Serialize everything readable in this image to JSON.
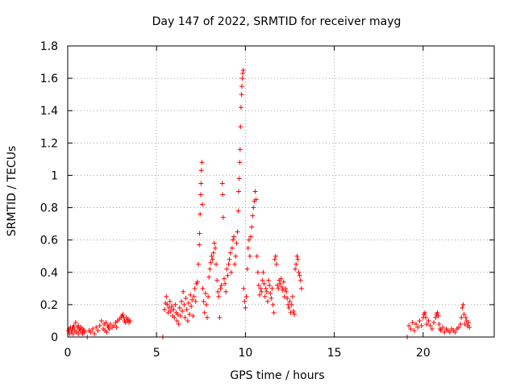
{
  "chart_data": {
    "type": "scatter",
    "title": "Day 147 of 2022, SRMTID for receiver mayg",
    "xlabel": "GPS time / hours",
    "ylabel": "SRMTID / TECUs",
    "xlim": [
      0,
      24
    ],
    "ylim": [
      0,
      1.8
    ],
    "xticks": [
      0,
      5,
      10,
      15,
      20
    ],
    "xtick_labels": [
      "0",
      "5",
      "10",
      "15",
      "20"
    ],
    "yticks": [
      0,
      0.2,
      0.4,
      0.6,
      0.8,
      1.0,
      1.2,
      1.4,
      1.6,
      1.8
    ],
    "ytick_labels": [
      "0",
      "0.2",
      "0.4",
      "0.6",
      "0.8",
      "1",
      "1.2",
      "1.4",
      "1.6",
      "1.8"
    ],
    "grid": true,
    "marker": "+",
    "color": "#ff0000",
    "series": [
      {
        "name": "SRMTID",
        "points": [
          [
            0.05,
            0.04
          ],
          [
            0.1,
            0.02
          ],
          [
            0.15,
            0.06
          ],
          [
            0.2,
            0.03
          ],
          [
            0.25,
            0.05
          ],
          [
            0.3,
            0.02
          ],
          [
            0.35,
            0.07
          ],
          [
            0.4,
            0.04
          ],
          [
            0.45,
            0.09
          ],
          [
            0.5,
            0.03
          ],
          [
            0.55,
            0.06
          ],
          [
            0.6,
            0.02
          ],
          [
            0.65,
            0.05
          ],
          [
            0.7,
            0.04
          ],
          [
            0.75,
            0.06
          ],
          [
            0.8,
            0.03
          ],
          [
            0.85,
            0.05
          ],
          [
            0.9,
            0.04
          ],
          [
            0.95,
            0.03
          ],
          [
            0.1,
            0.05
          ],
          [
            0.3,
            0.06
          ],
          [
            0.6,
            0.07
          ],
          [
            0.85,
            0.02
          ],
          [
            1.1,
            0.0
          ],
          [
            1.2,
            0.04
          ],
          [
            1.3,
            0.03
          ],
          [
            1.4,
            0.05
          ],
          [
            1.5,
            0.02
          ],
          [
            1.6,
            0.06
          ],
          [
            1.7,
            0.04
          ],
          [
            1.8,
            0.07
          ],
          [
            1.9,
            0.1
          ],
          [
            2.0,
            0.05
          ],
          [
            2.05,
            0.08
          ],
          [
            2.1,
            0.04
          ],
          [
            2.15,
            0.09
          ],
          [
            2.2,
            0.03
          ],
          [
            2.25,
            0.07
          ],
          [
            2.3,
            0.06
          ],
          [
            2.35,
            0.05
          ],
          [
            2.4,
            0.08
          ],
          [
            2.5,
            0.06
          ],
          [
            2.6,
            0.07
          ],
          [
            2.7,
            0.09
          ],
          [
            2.75,
            0.06
          ],
          [
            2.8,
            0.1
          ],
          [
            2.9,
            0.11
          ],
          [
            3.0,
            0.12
          ],
          [
            3.05,
            0.13
          ],
          [
            3.1,
            0.14
          ],
          [
            3.15,
            0.12
          ],
          [
            3.2,
            0.1
          ],
          [
            3.25,
            0.09
          ],
          [
            3.3,
            0.12
          ],
          [
            3.35,
            0.1
          ],
          [
            3.4,
            0.11
          ],
          [
            3.45,
            0.09
          ],
          [
            3.5,
            0.1
          ],
          [
            5.35,
            0.0
          ],
          [
            5.45,
            0.17
          ],
          [
            5.5,
            0.21
          ],
          [
            5.55,
            0.25
          ],
          [
            5.6,
            0.2
          ],
          [
            5.65,
            0.15
          ],
          [
            5.7,
            0.18
          ],
          [
            5.75,
            0.22
          ],
          [
            5.8,
            0.16
          ],
          [
            5.85,
            0.19
          ],
          [
            5.9,
            0.13
          ],
          [
            5.95,
            0.17
          ],
          [
            6.0,
            0.12
          ],
          [
            6.05,
            0.2
          ],
          [
            6.1,
            0.15
          ],
          [
            6.15,
            0.1
          ],
          [
            6.2,
            0.14
          ],
          [
            6.25,
            0.08
          ],
          [
            6.3,
            0.18
          ],
          [
            6.35,
            0.13
          ],
          [
            6.4,
            0.22
          ],
          [
            6.45,
            0.16
          ],
          [
            6.5,
            0.28
          ],
          [
            6.55,
            0.2
          ],
          [
            6.6,
            0.12
          ],
          [
            6.65,
            0.24
          ],
          [
            6.7,
            0.17
          ],
          [
            6.75,
            0.1
          ],
          [
            6.8,
            0.21
          ],
          [
            6.85,
            0.14
          ],
          [
            6.9,
            0.26
          ],
          [
            6.95,
            0.19
          ],
          [
            7.0,
            0.23
          ],
          [
            7.05,
            0.13
          ],
          [
            7.1,
            0.25
          ],
          [
            7.15,
            0.3
          ],
          [
            7.2,
            0.22
          ],
          [
            7.25,
            0.33
          ],
          [
            7.3,
            0.34
          ],
          [
            7.35,
            0.45
          ],
          [
            7.4,
            0.57
          ],
          [
            7.42,
            0.64
          ],
          [
            7.45,
            0.76
          ],
          [
            7.48,
            0.88
          ],
          [
            7.5,
            0.95
          ],
          [
            7.52,
            1.03
          ],
          [
            7.55,
            1.08
          ],
          [
            7.58,
            0.82
          ],
          [
            7.6,
            0.3
          ],
          [
            7.65,
            0.22
          ],
          [
            7.7,
            0.15
          ],
          [
            7.75,
            0.27
          ],
          [
            7.8,
            0.2
          ],
          [
            7.85,
            0.12
          ],
          [
            7.9,
            0.25
          ],
          [
            7.95,
            0.37
          ],
          [
            8.0,
            0.42
          ],
          [
            8.05,
            0.46
          ],
          [
            8.1,
            0.5
          ],
          [
            8.15,
            0.48
          ],
          [
            8.2,
            0.52
          ],
          [
            8.25,
            0.58
          ],
          [
            8.3,
            0.55
          ],
          [
            8.35,
            0.45
          ],
          [
            8.4,
            0.35
          ],
          [
            8.45,
            0.28
          ],
          [
            8.5,
            0.25
          ],
          [
            8.55,
            0.12
          ],
          [
            8.6,
            0.3
          ],
          [
            8.65,
            0.32
          ],
          [
            8.7,
            0.95
          ],
          [
            8.72,
            0.88
          ],
          [
            8.75,
            0.74
          ],
          [
            8.8,
            0.36
          ],
          [
            8.85,
            0.33
          ],
          [
            8.9,
            0.28
          ],
          [
            8.95,
            0.42
          ],
          [
            9.0,
            0.38
          ],
          [
            9.05,
            0.45
          ],
          [
            9.1,
            0.48
          ],
          [
            9.15,
            0.52
          ],
          [
            9.2,
            0.4
          ],
          [
            9.25,
            0.55
          ],
          [
            9.3,
            0.6
          ],
          [
            9.35,
            0.62
          ],
          [
            9.4,
            0.45
          ],
          [
            9.45,
            0.5
          ],
          [
            9.5,
            0.58
          ],
          [
            9.55,
            0.65
          ],
          [
            9.6,
            0.78
          ],
          [
            9.62,
            0.9
          ],
          [
            9.65,
            0.98
          ],
          [
            9.68,
            1.08
          ],
          [
            9.7,
            1.16
          ],
          [
            9.72,
            1.3
          ],
          [
            9.75,
            1.42
          ],
          [
            9.78,
            1.5
          ],
          [
            9.8,
            1.55
          ],
          [
            9.82,
            1.6
          ],
          [
            9.85,
            1.63
          ],
          [
            9.88,
            1.65
          ],
          [
            9.9,
            0.3
          ],
          [
            9.95,
            0.22
          ],
          [
            10.0,
            0.18
          ],
          [
            10.05,
            0.25
          ],
          [
            10.1,
            0.42
          ],
          [
            10.15,
            0.55
          ],
          [
            10.2,
            0.6
          ],
          [
            10.25,
            0.5
          ],
          [
            10.3,
            0.62
          ],
          [
            10.35,
            0.68
          ],
          [
            10.4,
            0.75
          ],
          [
            10.45,
            0.8
          ],
          [
            10.5,
            0.84
          ],
          [
            10.55,
            0.9
          ],
          [
            10.6,
            0.85
          ],
          [
            10.65,
            0.5
          ],
          [
            10.7,
            0.4
          ],
          [
            10.75,
            0.32
          ],
          [
            10.8,
            0.26
          ],
          [
            10.85,
            0.3
          ],
          [
            10.9,
            0.28
          ],
          [
            10.95,
            0.35
          ],
          [
            11.0,
            0.4
          ],
          [
            11.05,
            0.33
          ],
          [
            11.1,
            0.25
          ],
          [
            11.15,
            0.3
          ],
          [
            11.2,
            0.28
          ],
          [
            11.25,
            0.22
          ],
          [
            11.3,
            0.35
          ],
          [
            11.35,
            0.32
          ],
          [
            11.4,
            0.27
          ],
          [
            11.45,
            0.24
          ],
          [
            11.5,
            0.3
          ],
          [
            11.55,
            0.2
          ],
          [
            11.6,
            0.15
          ],
          [
            11.65,
            0.48
          ],
          [
            11.7,
            0.5
          ],
          [
            11.75,
            0.45
          ],
          [
            11.8,
            0.32
          ],
          [
            11.85,
            0.3
          ],
          [
            11.9,
            0.35
          ],
          [
            11.95,
            0.33
          ],
          [
            12.0,
            0.36
          ],
          [
            12.05,
            0.31
          ],
          [
            12.1,
            0.29
          ],
          [
            12.15,
            0.34
          ],
          [
            12.2,
            0.25
          ],
          [
            12.25,
            0.3
          ],
          [
            12.3,
            0.28
          ],
          [
            12.35,
            0.24
          ],
          [
            12.4,
            0.2
          ],
          [
            12.45,
            0.18
          ],
          [
            12.5,
            0.22
          ],
          [
            12.55,
            0.15
          ],
          [
            12.6,
            0.2
          ],
          [
            12.65,
            0.25
          ],
          [
            12.7,
            0.16
          ],
          [
            12.75,
            0.14
          ],
          [
            12.8,
            0.42
          ],
          [
            12.85,
            0.45
          ],
          [
            12.9,
            0.5
          ],
          [
            12.95,
            0.48
          ],
          [
            13.0,
            0.4
          ],
          [
            13.05,
            0.38
          ],
          [
            13.1,
            0.35
          ],
          [
            13.15,
            0.3
          ],
          [
            19.1,
            0.0
          ],
          [
            19.2,
            0.07
          ],
          [
            19.3,
            0.05
          ],
          [
            19.4,
            0.09
          ],
          [
            19.5,
            0.04
          ],
          [
            19.6,
            0.08
          ],
          [
            19.7,
            0.06
          ],
          [
            19.8,
            0.1
          ],
          [
            19.9,
            0.07
          ],
          [
            20.0,
            0.12
          ],
          [
            20.05,
            0.14
          ],
          [
            20.1,
            0.15
          ],
          [
            20.15,
            0.12
          ],
          [
            20.2,
            0.08
          ],
          [
            20.3,
            0.1
          ],
          [
            20.4,
            0.07
          ],
          [
            20.5,
            0.05
          ],
          [
            20.6,
            0.09
          ],
          [
            20.7,
            0.12
          ],
          [
            20.75,
            0.14
          ],
          [
            20.8,
            0.15
          ],
          [
            20.85,
            0.13
          ],
          [
            20.9,
            0.08
          ],
          [
            20.95,
            0.05
          ],
          [
            21.0,
            0.04
          ],
          [
            21.1,
            0.06
          ],
          [
            21.2,
            0.03
          ],
          [
            21.3,
            0.05
          ],
          [
            21.4,
            0.04
          ],
          [
            21.5,
            0.03
          ],
          [
            21.6,
            0.05
          ],
          [
            21.7,
            0.04
          ],
          [
            21.8,
            0.03
          ],
          [
            21.9,
            0.05
          ],
          [
            22.0,
            0.06
          ],
          [
            22.1,
            0.08
          ],
          [
            22.15,
            0.12
          ],
          [
            22.2,
            0.18
          ],
          [
            22.25,
            0.2
          ],
          [
            22.3,
            0.14
          ],
          [
            22.35,
            0.08
          ],
          [
            22.4,
            0.12
          ],
          [
            22.45,
            0.1
          ],
          [
            22.5,
            0.07
          ],
          [
            22.55,
            0.09
          ],
          [
            22.6,
            0.06
          ]
        ]
      }
    ]
  }
}
